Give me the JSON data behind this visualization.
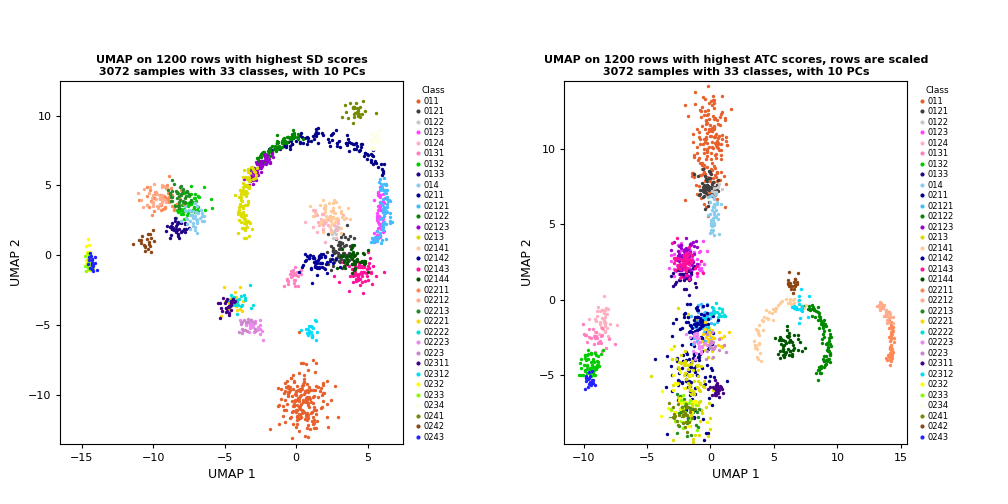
{
  "title1": "UMAP on 1200 rows with highest SD scores\n3072 samples with 33 classes, with 10 PCs",
  "title2": "UMAP on 1200 rows with highest ATC scores, rows are scaled\n3072 samples with 33 classes, with 10 PCs",
  "xlabel": "UMAP 1",
  "ylabel": "UMAP 2",
  "xlim1": [
    -16.5,
    7.5
  ],
  "ylim1": [
    -13.5,
    12.5
  ],
  "xlim2": [
    -11.5,
    15.5
  ],
  "ylim2": [
    -9.5,
    14.5
  ],
  "xticks1": [
    -15,
    -10,
    -5,
    0,
    5
  ],
  "yticks1": [
    -10,
    -5,
    0,
    5,
    10
  ],
  "xticks2": [
    -10,
    -5,
    0,
    5,
    10,
    15
  ],
  "yticks2": [
    -5,
    0,
    5,
    10
  ],
  "classes": [
    "011",
    "0121",
    "0122",
    "0123",
    "0124",
    "0131",
    "0132",
    "0133",
    "014",
    "0211",
    "02121",
    "02122",
    "02123",
    "0213",
    "02141",
    "02142",
    "02143",
    "02144",
    "02211",
    "02212",
    "02213",
    "02221",
    "02222",
    "02223",
    "0223",
    "02311",
    "02312",
    "0232",
    "0233",
    "0234",
    "0241",
    "0242",
    "0243"
  ],
  "colors": {
    "011": "#E8602C",
    "0121": "#404040",
    "0122": "#C8C8C8",
    "0123": "#FF44FF",
    "0124": "#FFB0C0",
    "0131": "#FF80C0",
    "0132": "#00CC00",
    "0133": "#220088",
    "014": "#88CCEE",
    "0211": "#000088",
    "02121": "#44BBFF",
    "02122": "#008800",
    "02123": "#9900CC",
    "0213": "#DDDD00",
    "02141": "#FFCC99",
    "02142": "#000099",
    "02143": "#FF1199",
    "02144": "#005500",
    "02211": "#FF8855",
    "02212": "#FFAA88",
    "02213": "#228B22",
    "02221": "#FFD700",
    "02222": "#00DDDD",
    "02223": "#EE88EE",
    "0223": "#CC88CC",
    "02311": "#440088",
    "02312": "#00DDFF",
    "0232": "#FFFF00",
    "0233": "#88FF00",
    "0234": "#FFFFE0",
    "0241": "#778800",
    "0242": "#8B4513",
    "0243": "#2222FF"
  },
  "legend_title": "Class",
  "point_size": 6,
  "alpha": 1.0,
  "bg_color": "#FFFFFF",
  "figsize": [
    10.08,
    5.04
  ],
  "dpi": 100
}
